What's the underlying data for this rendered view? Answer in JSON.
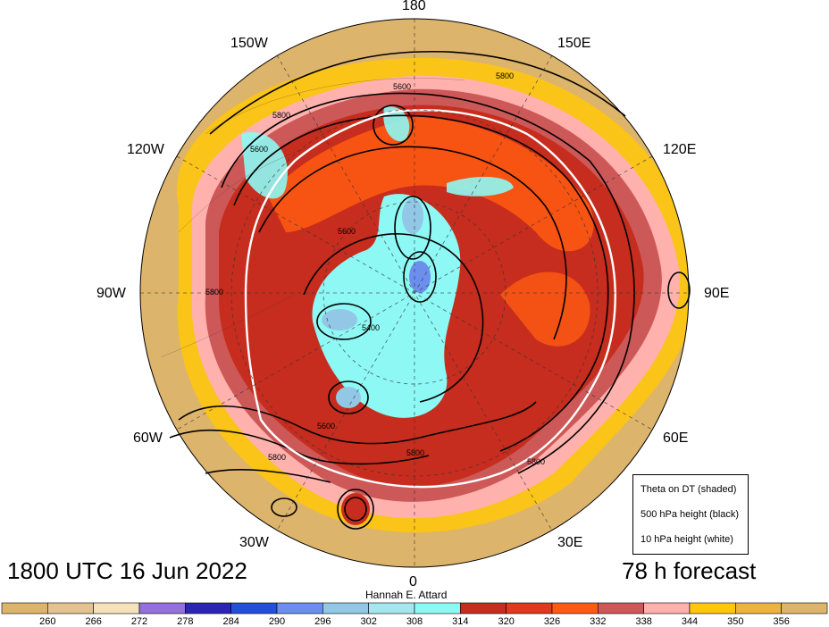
{
  "map": {
    "valid_time": "1800 UTC 16 Jun 2022",
    "forecast": "78 h forecast",
    "credit": "Hannah E. Attard",
    "longitude_labels": {
      "top": "180",
      "bottom": "0",
      "left": "90W",
      "right": "90E",
      "upper_left_1": "150W",
      "upper_left_2": "120W",
      "lower_left_1": "60W",
      "lower_left_2": "30W",
      "upper_right_1": "150E",
      "upper_right_2": "120E",
      "lower_right_1": "60E",
      "lower_right_2": "30E"
    },
    "contour_labels": [
      "5800",
      "5800",
      "5600",
      "5600",
      "5800",
      "5400",
      "5600",
      "5800",
      "5800",
      "5600",
      "5800"
    ],
    "legend": {
      "line1": "Theta on DT (shaded)",
      "line2": "500 hPa height (black)",
      "line3": "10 hPa height (white)"
    },
    "colorbar": {
      "ticks": [
        "260",
        "266",
        "272",
        "278",
        "284",
        "290",
        "296",
        "302",
        "308",
        "314",
        "320",
        "326",
        "332",
        "338",
        "344",
        "350",
        "356"
      ],
      "colors": [
        "#ddb46c",
        "#e4c391",
        "#f5e2bb",
        "#9370db",
        "#2b25b5",
        "#244fdc",
        "#6c8fed",
        "#93c7e6",
        "#a6e7ef",
        "#8ef8f4",
        "#c62d1e",
        "#e2381e",
        "#ff5a11",
        "#cd5858",
        "#ffb1ad",
        "#ffc709",
        "#ecb43c",
        "#ddb46c"
      ]
    }
  }
}
